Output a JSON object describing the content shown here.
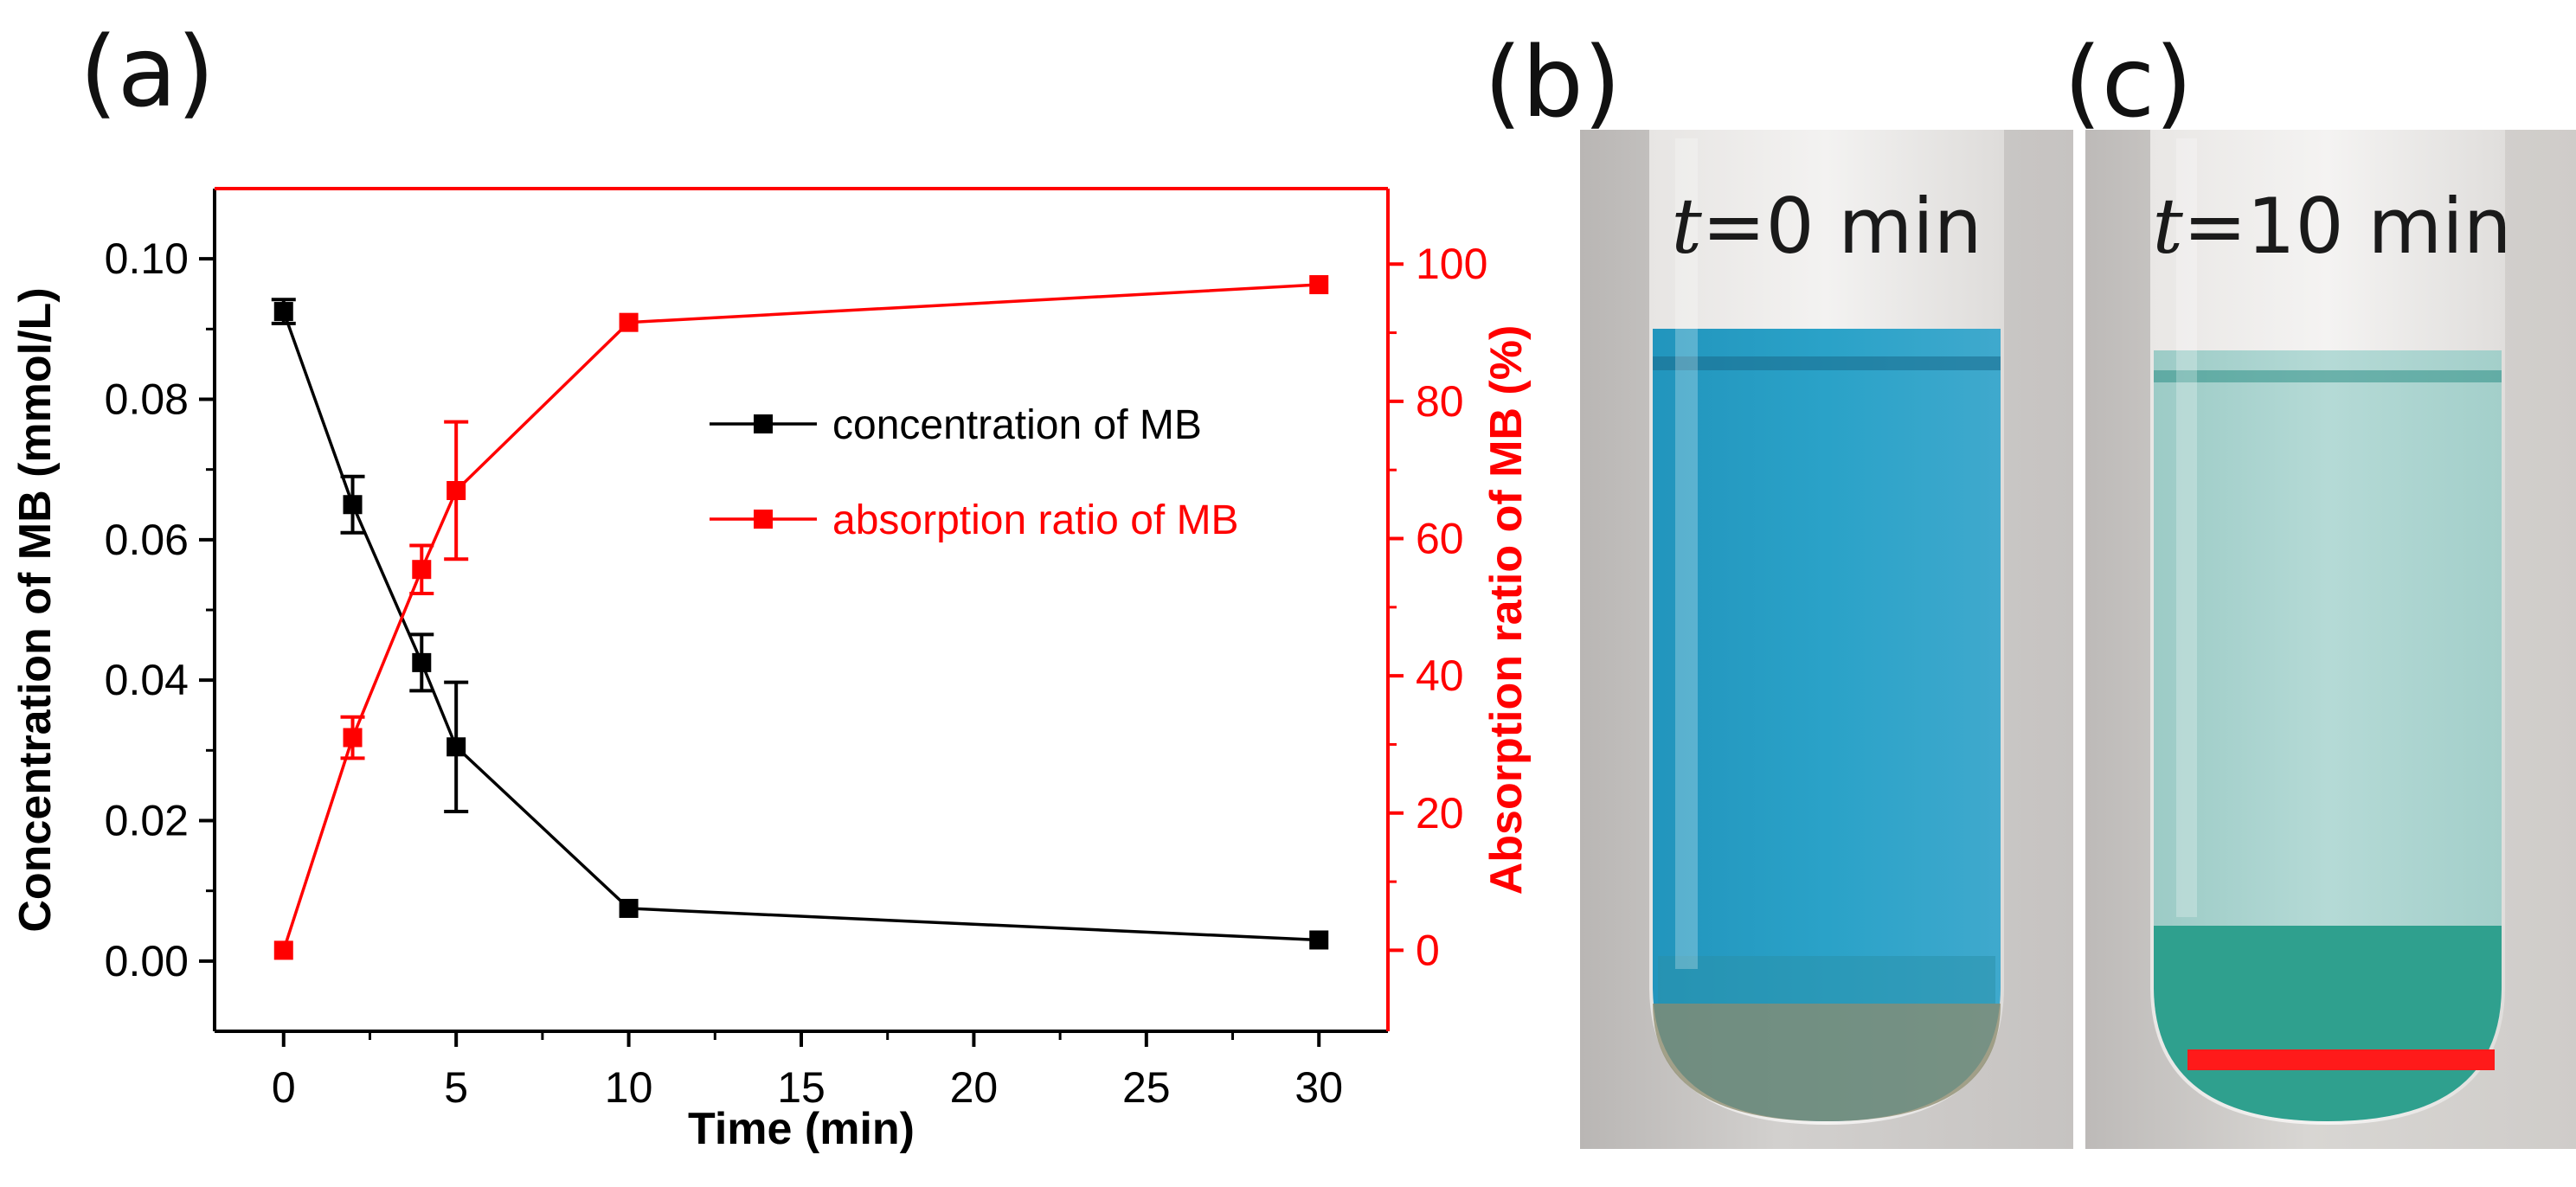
{
  "panels": {
    "a": "(a)",
    "b": "(b)",
    "c": "(c)"
  },
  "chart_data": {
    "type": "line",
    "xlabel": "Time (min)",
    "ylabel_left": "Concentration of MB (mmol/L)",
    "ylabel_right": "Absorption ratio of MB (%)",
    "xlim": [
      -2,
      32
    ],
    "ylim_left": [
      -0.01,
      0.11
    ],
    "ylim_right": [
      -11.8,
      111
    ],
    "xticks": [
      0,
      5,
      10,
      15,
      20,
      25,
      30
    ],
    "yticks_left": [
      "0.00",
      "0.02",
      "0.04",
      "0.06",
      "0.08",
      "0.10"
    ],
    "yticks_right": [
      0,
      20,
      40,
      60,
      80,
      100
    ],
    "legend_position": "center-right",
    "series": [
      {
        "name": "concentration of MB",
        "axis": "left",
        "color": "#000000",
        "x": [
          0,
          2,
          4,
          5,
          10,
          30
        ],
        "y": [
          0.0925,
          0.065,
          0.0425,
          0.0305,
          0.0075,
          0.003
        ],
        "err": [
          0.0017,
          0.004,
          0.004,
          0.0092,
          0,
          0
        ]
      },
      {
        "name": "absorption ratio of MB",
        "axis": "right",
        "color": "#ff0000",
        "x": [
          0,
          2,
          4,
          5,
          10,
          30
        ],
        "y": [
          0,
          31,
          55.5,
          67,
          91.5,
          97
        ],
        "err": [
          0,
          3,
          3.5,
          10,
          0,
          0
        ]
      }
    ]
  },
  "photos": {
    "b_label_var": "t",
    "b_label_rest": "=0 min",
    "c_label_var": "t",
    "c_label_rest": "=10 min",
    "scale_bar_color": "#ff1a1a",
    "liquid_b_color": "#2aa2c8",
    "liquid_c_color": "#a8d3cf"
  }
}
